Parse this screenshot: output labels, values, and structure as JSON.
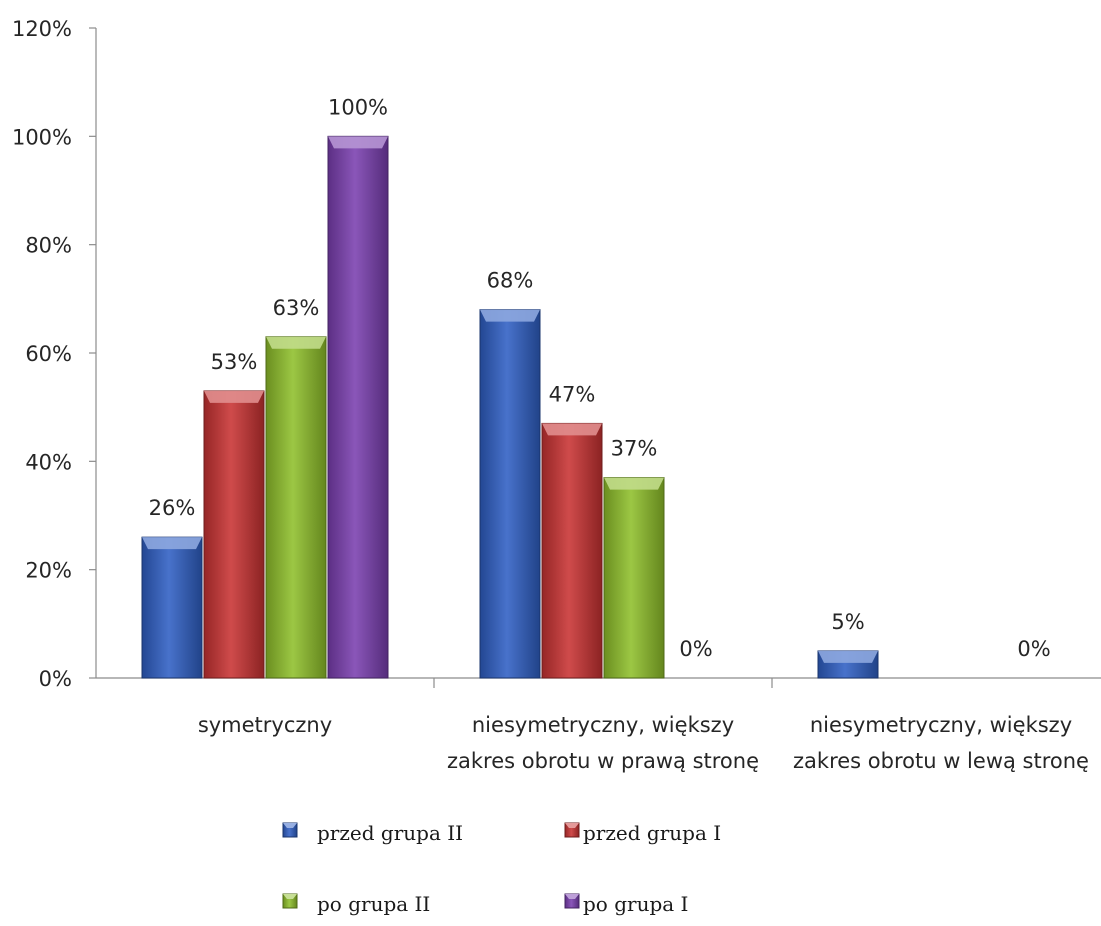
{
  "chart_data": {
    "type": "bar",
    "title": "",
    "xlabel": "",
    "ylabel": "",
    "ylim": [
      0,
      120
    ],
    "y_ticks": [
      "0%",
      "20%",
      "40%",
      "60%",
      "80%",
      "100%",
      "120%"
    ],
    "y_tick_values": [
      0,
      20,
      40,
      60,
      80,
      100,
      120
    ],
    "categories": [
      [
        "symetryczny"
      ],
      [
        "niesymetryczny, większy",
        "zakres obrotu w prawą stronę"
      ],
      [
        "niesymetryczny, większy",
        "zakres obrotu w lewą stronę"
      ]
    ],
    "series": [
      {
        "name": "przed grupa II",
        "values": [
          26,
          68,
          5
        ],
        "labels": [
          "26%",
          "68%",
          "5%"
        ],
        "color": "#2f5fc4"
      },
      {
        "name": "przed grupa I",
        "values": [
          53,
          47,
          0
        ],
        "labels": [
          "53%",
          "47%",
          ""
        ],
        "color": "#c83232"
      },
      {
        "name": "po grupa II",
        "values": [
          63,
          37,
          0
        ],
        "labels": [
          "63%",
          "37%",
          ""
        ],
        "color": "#8fbf2a"
      },
      {
        "name": "po grupa I",
        "values": [
          100,
          0,
          0
        ],
        "labels": [
          "100%",
          "0%",
          "0%"
        ],
        "color": "#7a3fb0"
      }
    ],
    "legend_position": "bottom",
    "grid": false
  }
}
